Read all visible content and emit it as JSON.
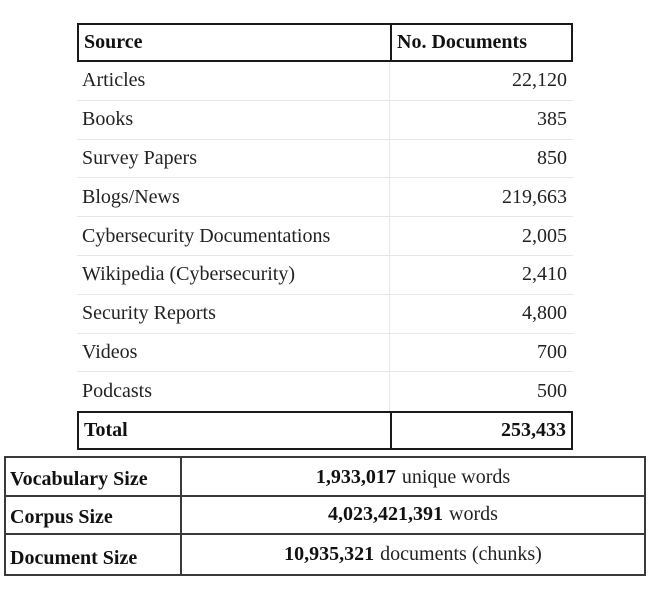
{
  "sources_table": {
    "headers": {
      "source": "Source",
      "count": "No. Documents"
    },
    "rows": [
      {
        "source": "Articles",
        "count": "22,120"
      },
      {
        "source": "Books",
        "count": "385"
      },
      {
        "source": "Survey Papers",
        "count": "850"
      },
      {
        "source": "Blogs/News",
        "count": "219,663"
      },
      {
        "source": "Cybersecurity Documentations",
        "count": "2,005"
      },
      {
        "source": "Wikipedia (Cybersecurity)",
        "count": "2,410"
      },
      {
        "source": "Security Reports",
        "count": "4,800"
      },
      {
        "source": "Videos",
        "count": "700"
      },
      {
        "source": "Podcasts",
        "count": "500"
      }
    ],
    "total": {
      "label": "Total",
      "count": "253,433"
    }
  },
  "stats_table": {
    "rows": [
      {
        "label": "Vocabulary Size",
        "value": "1,933,017",
        "unit": "unique words"
      },
      {
        "label": "Corpus Size",
        "value": "4,023,421,391",
        "unit": "words"
      },
      {
        "label": "Document Size",
        "value": "10,935,321",
        "unit": "documents (chunks)"
      }
    ]
  }
}
